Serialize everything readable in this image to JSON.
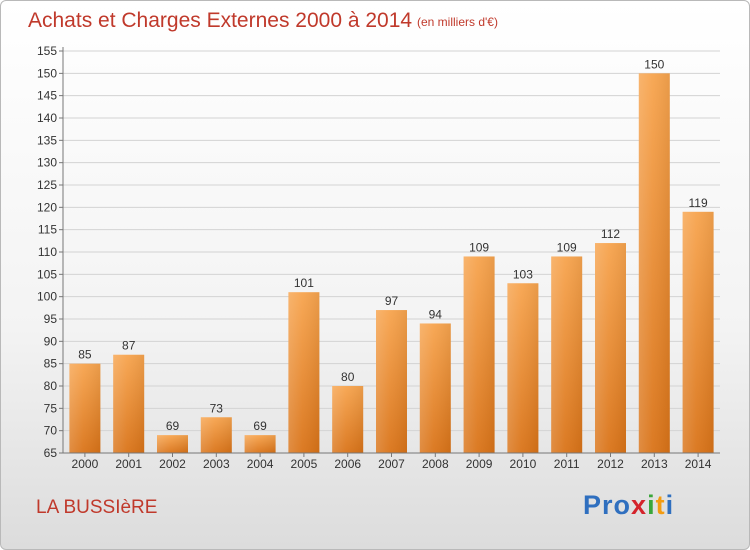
{
  "title": "Achats et Charges Externes 2000 à 2014",
  "subtitle": "(en milliers d'€)",
  "place": "LA BUSSIèRE",
  "brand": {
    "letters": [
      "P",
      "r",
      "o",
      "x",
      "i",
      "t",
      "i"
    ],
    "colors": [
      "#2f6fbf",
      "#2f6fbf",
      "#2f6fbf",
      "#d4232b",
      "#3aa63a",
      "#f39c12",
      "#2f6fbf"
    ]
  },
  "chart_data": {
    "type": "bar",
    "categories": [
      "2000",
      "2001",
      "2002",
      "2003",
      "2004",
      "2005",
      "2006",
      "2007",
      "2008",
      "2009",
      "2010",
      "2011",
      "2012",
      "2013",
      "2014"
    ],
    "values": [
      85,
      87,
      69,
      73,
      69,
      101,
      80,
      97,
      94,
      109,
      103,
      109,
      112,
      150,
      119
    ],
    "ylim": [
      65,
      155
    ],
    "yticks": [
      65,
      70,
      75,
      80,
      85,
      90,
      95,
      100,
      105,
      110,
      115,
      120,
      125,
      130,
      135,
      140,
      145,
      150,
      155
    ],
    "grid": true,
    "bar_color": "#f0922e"
  }
}
